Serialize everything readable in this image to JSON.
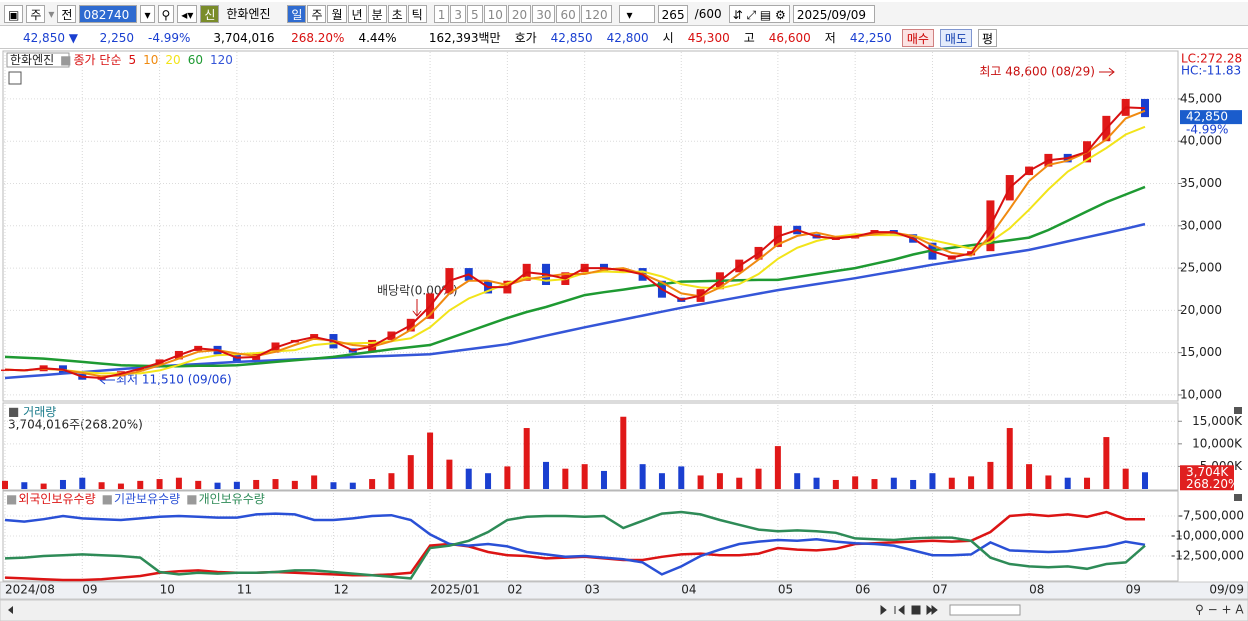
{
  "toolbar": {
    "market": "주",
    "prev": "전",
    "code": "082740",
    "badge": "신",
    "name": "한화엔진",
    "periods": [
      "일",
      "주",
      "월",
      "년",
      "분",
      "초",
      "틱"
    ],
    "intervals": [
      "1",
      "3",
      "5",
      "10",
      "20",
      "30",
      "60",
      "120"
    ],
    "count": "265",
    "max": "/600",
    "date": "2025/09/09"
  },
  "info_bar": {
    "price": "42,850 ▼",
    "change": "2,250",
    "change_pct": "-4.99%",
    "volume": "3,704,016",
    "volume_ratio": "268.20%",
    "turnover": "4.44%",
    "amount": "162,393백만",
    "quote_label": "호가",
    "ask": "42,850",
    "bid": "42,800",
    "open_label": "시",
    "open": "45,300",
    "high_label": "고",
    "high": "46,600",
    "low_label": "저",
    "low": "42,250",
    "buy": "매수",
    "sell": "매도",
    "avg": "평"
  },
  "chart_data": [
    {
      "type": "stock",
      "title": "한화엔진",
      "ma_label": "종가 단순",
      "up_color": "#e01818",
      "down_color": "#1a3fd0",
      "close": [
        13000,
        12800,
        13500,
        12500,
        11800,
        12200,
        12800,
        13400,
        14200,
        15200,
        15800,
        14800,
        14000,
        15000,
        16200,
        16500,
        17200,
        15500,
        15000,
        16500,
        17500,
        19000,
        22000,
        25000,
        23500,
        22000,
        23500,
        25500,
        23000,
        24500,
        25500,
        24500,
        25000,
        23500,
        21500,
        21000,
        22500,
        24500,
        26000,
        27500,
        30000,
        29000,
        28500,
        28500,
        29000,
        29500,
        29000,
        28000,
        26000,
        26500,
        27000,
        33000,
        36000,
        37000,
        38500,
        37500,
        40000,
        43000,
        45000,
        42850
      ],
      "series": [
        {
          "name": "5",
          "color": "#d81010",
          "values": [
            13000,
            12900,
            13150,
            13000,
            12150,
            12000,
            12500,
            13100,
            13800,
            14700,
            15500,
            15300,
            14400,
            14500,
            15600,
            16350,
            16850,
            16350,
            15250,
            15750,
            17000,
            18250,
            20500,
            23500,
            24250,
            22750,
            22750,
            24500,
            24250,
            23750,
            25000,
            25000,
            24750,
            24250,
            22500,
            21250,
            21750,
            23500,
            25250,
            26750,
            28750,
            29500,
            28750,
            28500,
            28750,
            29250,
            29250,
            28500,
            27000,
            26250,
            26750,
            30000,
            34500,
            36500,
            37750,
            38000,
            38750,
            41500,
            44000,
            43900
          ]
        },
        {
          "name": "10",
          "color": "#f08a10",
          "values": [
            13000,
            12900,
            13100,
            12950,
            12600,
            12200,
            12300,
            12800,
            13500,
            14300,
            15100,
            15300,
            14900,
            14600,
            15100,
            15900,
            16650,
            16400,
            15900,
            15700,
            16350,
            17700,
            19500,
            22000,
            23500,
            23500,
            23000,
            23700,
            24000,
            24300,
            24300,
            24800,
            25000,
            24300,
            23300,
            22000,
            21650,
            22700,
            24300,
            26000,
            27800,
            28800,
            29200,
            28700,
            28700,
            29000,
            29200,
            28800,
            27700,
            26800,
            26500,
            28800,
            32000,
            35300,
            37200,
            37700,
            38700,
            40200,
            42700,
            43600
          ]
        },
        {
          "name": "20",
          "color": "#f2e41a",
          "values": [
            13000,
            12900,
            13100,
            12950,
            12700,
            12550,
            12550,
            12550,
            12900,
            13550,
            14300,
            14700,
            14800,
            14950,
            15150,
            15300,
            15900,
            16100,
            16100,
            16150,
            16350,
            16700,
            18000,
            20000,
            21400,
            22300,
            23200,
            23900,
            23500,
            23700,
            24400,
            24600,
            24500,
            24600,
            24000,
            23100,
            22700,
            22600,
            23100,
            24300,
            26100,
            27400,
            28200,
            28700,
            29000,
            28900,
            28900,
            28800,
            28300,
            27800,
            27300,
            28100,
            29700,
            31900,
            34300,
            36400,
            37800,
            39200,
            40800,
            41700
          ]
        },
        {
          "name": "60",
          "color": "#1e9a32",
          "values": [
            14500,
            14400,
            14300,
            14100,
            13900,
            13700,
            13500,
            13450,
            13400,
            13400,
            13450,
            13450,
            13500,
            13700,
            13900,
            14100,
            14300,
            14500,
            14800,
            15100,
            15400,
            15650,
            15900,
            16700,
            17500,
            18300,
            19100,
            19800,
            20400,
            21100,
            21800,
            22150,
            22450,
            22800,
            23100,
            23400,
            23450,
            23500,
            23550,
            23600,
            23600,
            23950,
            24300,
            24650,
            25000,
            25500,
            26000,
            26600,
            27100,
            27400,
            27700,
            28000,
            28300,
            28600,
            29500,
            30600,
            31700,
            32800,
            33700,
            34600
          ]
        },
        {
          "name": "120",
          "color": "#3556d8",
          "values": [
            12000,
            12180,
            12350,
            12530,
            12700,
            12880,
            13050,
            13230,
            13400,
            13530,
            13650,
            13780,
            13900,
            14000,
            14100,
            14200,
            14300,
            14400,
            14480,
            14560,
            14640,
            14720,
            14800,
            15100,
            15400,
            15700,
            16000,
            16500,
            17000,
            17500,
            18000,
            18460,
            18920,
            19380,
            19840,
            20300,
            20720,
            21140,
            21560,
            21980,
            22400,
            22750,
            23100,
            23450,
            23800,
            24200,
            24600,
            25000,
            25400,
            25750,
            26100,
            26450,
            26800,
            27150,
            27650,
            28150,
            28650,
            29150,
            29650,
            30200
          ]
        }
      ],
      "ylim": [
        9400,
        50550
      ],
      "yticks": [
        {
          "value": 10000,
          "label": "10,000"
        },
        {
          "value": 15000,
          "label": "15,000"
        },
        {
          "value": 20000,
          "label": "20,000"
        },
        {
          "value": 25000,
          "label": "25,000"
        },
        {
          "value": 30000,
          "label": "30,000"
        },
        {
          "value": 35000,
          "label": "35,000"
        },
        {
          "value": 40000,
          "label": "40,000"
        },
        {
          "value": 45000,
          "label": "45,000"
        }
      ],
      "grid": true,
      "last": {
        "value": 42850,
        "label": "42,850"
      },
      "last_change": "-4.99%",
      "lc": "LC:272.28",
      "hc": "HC:-11.83",
      "annotations": [
        "최고 48,600 (08/29)",
        "최저 11,510 (09/06)",
        "배당락(0.00%)"
      ]
    },
    {
      "type": "bar",
      "title": "거래량",
      "subtitle": "3,704,016주(268.20%)",
      "values": [
        1800,
        1500,
        1200,
        2000,
        2500,
        1500,
        1200,
        1800,
        2200,
        2500,
        1800,
        1400,
        1600,
        2000,
        2200,
        1800,
        3000,
        1500,
        1400,
        2200,
        3500,
        7500,
        12500,
        6500,
        4500,
        3500,
        5000,
        13500,
        6000,
        4500,
        5500,
        4000,
        16000,
        5500,
        3500,
        5000,
        3000,
        3500,
        2500,
        4500,
        9500,
        3500,
        2500,
        2000,
        2800,
        2200,
        2500,
        2000,
        3500,
        2500,
        2800,
        6000,
        13500,
        5500,
        3000,
        2500,
        2500,
        11500,
        4500,
        3704
      ],
      "ylim": [
        0,
        18600
      ],
      "yticks": [
        {
          "value": 5000,
          "label": "5,000K"
        },
        {
          "value": 10000,
          "label": "10,000K"
        },
        {
          "value": 15000,
          "label": "15,000K"
        }
      ],
      "last": {
        "value": 3704,
        "label": "3,704K"
      },
      "last_ratio": "268.20%"
    },
    {
      "type": "line",
      "categories": [
        "2024/08",
        null,
        null,
        null,
        "09",
        null,
        null,
        null,
        "10",
        null,
        null,
        null,
        "11",
        null,
        null,
        null,
        null,
        "12",
        null,
        null,
        null,
        null,
        "2025/01",
        null,
        null,
        null,
        "02",
        null,
        null,
        null,
        "03",
        null,
        null,
        null,
        null,
        "04",
        null,
        null,
        null,
        null,
        "05",
        null,
        null,
        null,
        "06",
        null,
        null,
        null,
        "07",
        null,
        null,
        null,
        null,
        "08",
        null,
        null,
        null,
        null,
        "09",
        null
      ],
      "x_end_label": "09/09",
      "series": [
        {
          "name": "외국인보유수량",
          "color": "#dc1414",
          "values": [
            -15200000,
            -15300000,
            -15400000,
            -15500000,
            -15500000,
            -15400000,
            -15200000,
            -15000000,
            -14600000,
            -14400000,
            -14300000,
            -14500000,
            -14600000,
            -14600000,
            -14500000,
            -14600000,
            -14700000,
            -14800000,
            -14900000,
            -14900000,
            -14800000,
            -14600000,
            -11200000,
            -11000000,
            -11300000,
            -12000000,
            -12400000,
            -12500000,
            -12800000,
            -12700000,
            -12600000,
            -12800000,
            -13000000,
            -13000000,
            -12600000,
            -12300000,
            -12200000,
            -12400000,
            -12400000,
            -12200000,
            -11500000,
            -11700000,
            -11800000,
            -11600000,
            -11000000,
            -10900000,
            -10800000,
            -10700000,
            -10600000,
            -10700000,
            -10600000,
            -9500000,
            -7500000,
            -7300000,
            -7500000,
            -7300000,
            -7600000,
            -7000000,
            -7900000,
            -7900000
          ]
        },
        {
          "name": "기관보유수량",
          "color": "#2a50d6",
          "values": [
            -8000000,
            -8200000,
            -7900000,
            -7500000,
            -7800000,
            -7900000,
            -8000000,
            -7800000,
            -7600000,
            -7500000,
            -7600000,
            -7700000,
            -7700000,
            -7300000,
            -7200000,
            -7300000,
            -8000000,
            -8000000,
            -7800000,
            -7500000,
            -7400000,
            -8000000,
            -9800000,
            -11000000,
            -11200000,
            -11000000,
            -11300000,
            -12000000,
            -12300000,
            -12600000,
            -12500000,
            -12700000,
            -12900000,
            -13300000,
            -14800000,
            -13800000,
            -12500000,
            -11700000,
            -11000000,
            -10700000,
            -10500000,
            -10600000,
            -10400000,
            -10700000,
            -10900000,
            -11000000,
            -11200000,
            -11800000,
            -12400000,
            -12400000,
            -12300000,
            -10800000,
            -11800000,
            -11900000,
            -12000000,
            -11900000,
            -11600000,
            -11300000,
            -10700000,
            -11100000
          ]
        },
        {
          "name": "개인보유수량",
          "color": "#2e8b57",
          "values": [
            -12800000,
            -12700000,
            -12500000,
            -12400000,
            -12300000,
            -12400000,
            -12500000,
            -12700000,
            -14500000,
            -14800000,
            -14600000,
            -14700000,
            -14600000,
            -14600000,
            -14500000,
            -14300000,
            -14300000,
            -14500000,
            -14700000,
            -14900000,
            -15100000,
            -15300000,
            -11500000,
            -11200000,
            -10600000,
            -9500000,
            -8000000,
            -7600000,
            -7500000,
            -7500000,
            -7600000,
            -7500000,
            -9000000,
            -8100000,
            -7200000,
            -7000000,
            -7300000,
            -8000000,
            -8600000,
            -9200000,
            -9400000,
            -9300000,
            -9400000,
            -9600000,
            -10300000,
            -10400000,
            -10500000,
            -10300000,
            -10200000,
            -10200000,
            -10600000,
            -12700000,
            -13500000,
            -13800000,
            -13900000,
            -13800000,
            -14100000,
            -13500000,
            -13300000,
            -11200000
          ]
        }
      ],
      "ylim": [
        -15500000,
        -4625000
      ],
      "yticks": [
        {
          "value": -12500000,
          "label": "-12,500,000"
        },
        {
          "value": -10000000,
          "label": "-10,000,000"
        },
        {
          "value": -7500000,
          "label": "-7,500,000"
        }
      ]
    }
  ]
}
